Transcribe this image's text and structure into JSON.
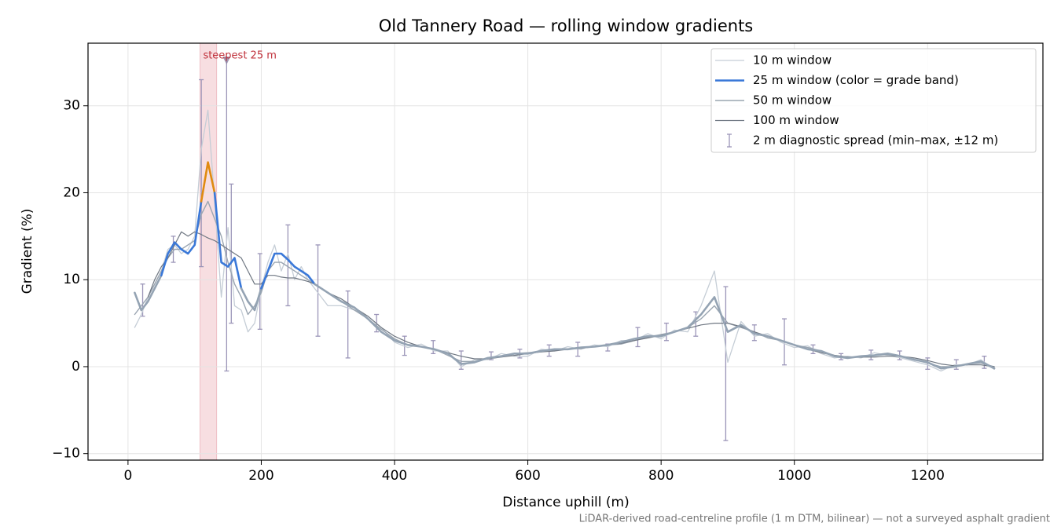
{
  "chart_data": {
    "type": "line",
    "title": "Old Tannery Road — rolling window gradients",
    "xlabel": "Distance uphill (m)",
    "ylabel": "Gradient (%)",
    "footnote": "LiDAR-derived road-centreline profile (1 m DTM, bilinear) — not a surveyed asphalt gradient",
    "xlim": [
      -60,
      1373
    ],
    "ylim": [
      -10.75,
      37.2
    ],
    "xticks": [
      0,
      200,
      400,
      600,
      800,
      1000,
      1200
    ],
    "yticks": [
      {
        "value": -10,
        "label": "−10"
      },
      0,
      10,
      20,
      30
    ],
    "grid": true,
    "legend": "upper right",
    "x": [
      10,
      20,
      30,
      40,
      50,
      60,
      70,
      80,
      90,
      100,
      110,
      120,
      130,
      140,
      150,
      160,
      170,
      180,
      190,
      200,
      210,
      220,
      230,
      240,
      250,
      260,
      270,
      280,
      290,
      300,
      320,
      340,
      360,
      380,
      400,
      420,
      440,
      460,
      480,
      500,
      520,
      540,
      560,
      580,
      600,
      620,
      640,
      660,
      680,
      700,
      720,
      740,
      760,
      780,
      800,
      820,
      840,
      860,
      880,
      900,
      920,
      940,
      960,
      980,
      1000,
      1020,
      1040,
      1060,
      1080,
      1100,
      1120,
      1140,
      1160,
      1180,
      1200,
      1220,
      1240,
      1260,
      1280,
      1300
    ],
    "series": [
      {
        "name": "10 m window",
        "color": "#c5cdd6",
        "width": 1.3,
        "values": [
          4.5,
          6,
          8,
          9.5,
          11,
          13.5,
          14,
          13,
          13.5,
          15,
          25,
          29.5,
          19,
          8,
          16,
          7,
          6.5,
          4,
          5,
          9,
          12,
          14,
          11,
          13,
          10,
          11.5,
          10,
          9,
          8,
          7,
          7,
          6.5,
          5.8,
          4.5,
          2.8,
          2.2,
          2.6,
          1.8,
          1.8,
          0,
          0.8,
          0.8,
          1.5,
          1.2,
          1.2,
          2,
          1.8,
          2.3,
          2,
          2.5,
          2.3,
          3,
          3,
          3.8,
          3.2,
          4.2,
          4,
          7,
          11,
          0.5,
          5.2,
          3.5,
          3.8,
          2.8,
          2.2,
          2.4,
          1.5,
          1,
          1.2,
          1,
          1.6,
          1.3,
          1,
          0.6,
          0.2,
          -0.5,
          0.2,
          0.2,
          0.8,
          -0.3
        ]
      },
      {
        "name": "25 m window (color = grade band)",
        "color": "#3a78d8",
        "width": 2.6,
        "band_edges": [
          10,
          20
        ],
        "band_colors": [
          "#94a3b3",
          "#3a78d8",
          "#e08a10"
        ],
        "values": [
          8.5,
          6.5,
          7.5,
          9,
          10.5,
          13,
          14.3,
          13.5,
          13,
          14,
          19,
          23.5,
          20,
          12,
          11.5,
          12.5,
          9,
          7.5,
          6.5,
          9,
          11,
          13,
          13,
          12.3,
          11.5,
          11,
          10.5,
          9.5,
          9,
          8.5,
          7.5,
          6.8,
          5.5,
          4,
          3,
          2.5,
          2.3,
          2,
          1.5,
          0.3,
          0.5,
          1,
          1.2,
          1.5,
          1.5,
          1.8,
          2,
          2,
          2.2,
          2.3,
          2.5,
          2.8,
          3.2,
          3.5,
          3.5,
          4,
          4.5,
          6,
          8,
          4,
          4.8,
          3.8,
          3.5,
          3,
          2.5,
          2,
          1.8,
          1.2,
          1,
          1.2,
          1.3,
          1.5,
          1.2,
          0.8,
          0.5,
          -0.2,
          0,
          0.3,
          0.6,
          -0.2
        ]
      },
      {
        "name": "50 m window",
        "color": "#9aa5b1",
        "width": 1.4,
        "values": [
          6,
          7,
          8,
          9.5,
          11,
          12.5,
          13.5,
          13.5,
          14,
          14.5,
          17.5,
          19,
          17,
          15,
          12,
          9.5,
          8,
          6,
          7,
          8.5,
          11,
          12,
          12,
          11.5,
          11,
          10.5,
          10,
          9.5,
          9,
          8.5,
          7.5,
          6.5,
          5.5,
          4.3,
          3.2,
          2.5,
          2.3,
          2,
          1.3,
          0.6,
          0.6,
          1,
          1.2,
          1.5,
          1.6,
          1.7,
          1.9,
          2,
          2.2,
          2.3,
          2.5,
          2.6,
          3,
          3.4,
          3.7,
          4,
          4.5,
          5.5,
          7,
          5,
          4.5,
          4,
          3.3,
          3,
          2.5,
          2.2,
          1.8,
          1.3,
          1.1,
          1.1,
          1.3,
          1.4,
          1.2,
          0.8,
          0.4,
          0,
          0,
          0.3,
          0.4,
          0
        ]
      },
      {
        "name": "100 m window",
        "color": "#6f7782",
        "width": 1.2,
        "values": [
          null,
          null,
          8,
          10,
          11.5,
          12.5,
          14,
          15.5,
          15,
          15.5,
          15.2,
          14.8,
          14.5,
          14,
          13.5,
          13,
          12.5,
          11,
          9.5,
          9.5,
          10.5,
          10.5,
          10.3,
          10.2,
          10.2,
          10,
          9.8,
          9.5,
          9,
          8.5,
          7.8,
          6.8,
          5.8,
          4.5,
          3.5,
          2.8,
          2.3,
          2,
          1.6,
          1.2,
          0.9,
          0.9,
          1.1,
          1.3,
          1.5,
          1.7,
          1.8,
          2,
          2.1,
          2.3,
          2.5,
          2.7,
          3,
          3.3,
          3.6,
          4,
          4.4,
          4.8,
          5,
          5,
          4.6,
          4,
          3.5,
          3,
          2.5,
          2,
          1.6,
          1.3,
          1.1,
          1.1,
          1.1,
          1.2,
          1.2,
          1,
          0.7,
          0.3,
          0.1,
          0.2,
          0.2,
          0
        ]
      }
    ],
    "spread": {
      "name": "2 m diagnostic spread (min–max, ±12 m)",
      "color": "#9b95b8",
      "x": [
        22,
        68,
        110,
        148,
        155,
        198,
        240,
        285,
        330,
        373,
        415,
        458,
        500,
        545,
        588,
        632,
        675,
        720,
        765,
        808,
        852,
        897,
        940,
        985,
        1028,
        1070,
        1115,
        1158,
        1200,
        1243,
        1285
      ],
      "low": [
        5.8,
        12,
        11.5,
        -0.5,
        5,
        4.3,
        7,
        3.5,
        1,
        4,
        1.3,
        1.5,
        -0.3,
        0.8,
        1,
        1.2,
        1.2,
        1.8,
        2.3,
        3,
        3.5,
        -8.5,
        3,
        0.2,
        1.5,
        0.8,
        0.8,
        0.8,
        -0.3,
        -0.3,
        -0.2
      ],
      "high": [
        9.5,
        15,
        33,
        35.5,
        21,
        13,
        16.3,
        14,
        8.7,
        6,
        3.5,
        3,
        1.8,
        1.7,
        2,
        2.5,
        2.8,
        2.6,
        4.5,
        5,
        6.3,
        9.2,
        4.8,
        5.5,
        2.5,
        1.5,
        1.9,
        1.8,
        1,
        0.8,
        1.2
      ]
    },
    "highlight": {
      "x0": 108,
      "x1": 133,
      "label": "steepest 25 m",
      "color": "#e8a0a8"
    },
    "marker": {
      "x": 148,
      "y": 35.2,
      "color": "#8c7fa0"
    }
  }
}
